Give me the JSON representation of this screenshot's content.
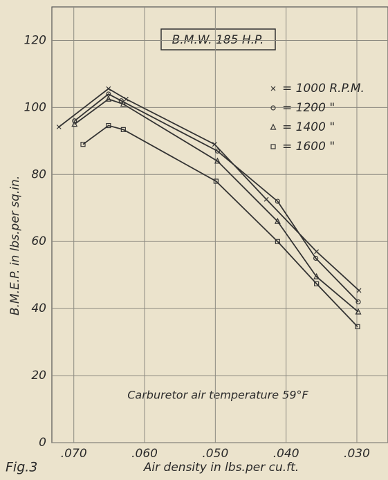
{
  "chart_data": {
    "type": "line",
    "title": "B.M.W. 185 H.P.",
    "annotation": "Carburetor air temperature 59°F",
    "xlabel": "Air density in lbs.per cu.ft.",
    "ylabel": "B.M.E.P. in lbs.per sq.in.",
    "caption": "Fig.3",
    "xlim": [
      0.0731,
      0.0256
    ],
    "ylim": [
      0,
      130
    ],
    "xticks": [
      {
        "value": 0.07,
        "label": ".070"
      },
      {
        "value": 0.06,
        "label": ".060"
      },
      {
        "value": 0.05,
        "label": ".050"
      },
      {
        "value": 0.04,
        "label": ".040"
      },
      {
        "value": 0.03,
        "label": ".030"
      }
    ],
    "yticks": [
      0,
      20,
      40,
      60,
      80,
      100,
      120
    ],
    "grid": true,
    "series": [
      {
        "name": "= 1000 R.P.M.",
        "marker": "x",
        "color": "#333333",
        "x": [
          0.0721,
          0.0651,
          0.0626,
          0.0501,
          0.0428,
          0.0357,
          0.0297
        ],
        "values": [
          94.2,
          105.6,
          102.5,
          89,
          72.6,
          57,
          45.4
        ]
      },
      {
        "name": "= 1200 \"",
        "marker": "circle",
        "color": "#333333",
        "x": [
          0.0699,
          0.0651,
          0.0633,
          0.0497,
          0.0412,
          0.0358,
          0.0298
        ],
        "values": [
          96,
          104,
          102,
          87,
          72,
          55,
          42
        ]
      },
      {
        "name": "= 1400 \"",
        "marker": "triangle",
        "color": "#333333",
        "x": [
          0.0699,
          0.0651,
          0.063,
          0.0497,
          0.0412,
          0.0357,
          0.0298
        ],
        "values": [
          95,
          102.5,
          101,
          84,
          66,
          49.5,
          39
        ]
      },
      {
        "name": "= 1600 \"",
        "marker": "square",
        "color": "#333333",
        "x": [
          0.0687,
          0.0651,
          0.063,
          0.0499,
          0.0412,
          0.0357,
          0.0299
        ],
        "values": [
          89,
          94.6,
          93.4,
          78,
          60,
          47.4,
          34.6
        ]
      }
    ]
  }
}
